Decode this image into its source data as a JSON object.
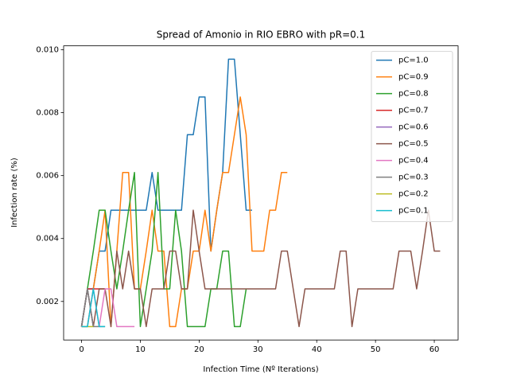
{
  "chart_data": {
    "type": "line",
    "title": "Spread of Amonio in RIO EBRO with pR=0.1",
    "xlabel": "Infection Time (Nº Iterations)",
    "ylabel": "Infection rate (%)",
    "x": [
      0,
      1,
      2,
      3,
      4,
      5,
      6,
      7,
      8,
      9,
      10,
      11,
      12,
      13,
      14,
      15,
      16,
      17,
      18,
      19,
      20,
      21,
      22,
      23,
      24,
      25,
      26,
      27,
      28,
      29,
      30,
      31,
      32,
      33,
      34,
      35,
      36,
      37,
      38,
      39,
      40,
      41,
      42,
      43,
      44,
      45,
      46,
      47,
      48,
      49,
      50,
      51,
      52,
      53,
      54,
      55,
      56,
      57,
      58,
      59,
      60,
      61
    ],
    "xlim": [
      -3.05,
      64.05
    ],
    "xticks": [
      0,
      10,
      20,
      30,
      40,
      50,
      60
    ],
    "ylim": [
      0.000775,
      0.010125
    ],
    "yticks": [
      0.002,
      0.004,
      0.006,
      0.008,
      {
        "value": 0.01,
        "label": "0.010"
      }
    ],
    "legend": "upper right",
    "series": [
      {
        "name": "pC=1.0",
        "color": "#1f77b4",
        "values": [
          0.0012,
          0.0024,
          0.0024,
          0.0036,
          0.0036,
          0.0049,
          0.0049,
          0.0049,
          0.0049,
          0.0049,
          0.0049,
          0.0049,
          0.0061,
          0.0049,
          0.0049,
          0.0049,
          0.0049,
          0.0049,
          0.0073,
          0.0073,
          0.0085,
          0.0085,
          0.0036,
          0.0049,
          0.0061,
          0.0097,
          0.0097,
          0.0073,
          0.0049,
          0.0049,
          null,
          null,
          null,
          null,
          null,
          null,
          null,
          null,
          null,
          null,
          null,
          null,
          null,
          null,
          null,
          null,
          null,
          null,
          null,
          null,
          null,
          null,
          null,
          null,
          null,
          null,
          null,
          null,
          null,
          null,
          null,
          null
        ]
      },
      {
        "name": "pC=0.9",
        "color": "#ff7f0e",
        "values": [
          0.0012,
          0.0012,
          0.0024,
          0.0036,
          0.0049,
          0.0012,
          0.0036,
          0.0061,
          0.0061,
          0.0024,
          0.0024,
          0.0036,
          0.0049,
          0.0036,
          0.0036,
          0.0012,
          0.0012,
          0.0024,
          0.0024,
          0.0036,
          0.0036,
          0.0049,
          0.0036,
          0.0049,
          0.0061,
          0.0061,
          0.0073,
          0.0085,
          0.0073,
          0.0036,
          0.0036,
          0.0036,
          0.0049,
          0.0049,
          0.0061,
          0.0061,
          null,
          null,
          null,
          null,
          null,
          null,
          null,
          null,
          null,
          null,
          null,
          null,
          null,
          null,
          null,
          null,
          null,
          null,
          null,
          null,
          null,
          null,
          null,
          null,
          null,
          null
        ]
      },
      {
        "name": "pC=0.8",
        "color": "#2ca02c",
        "values": [
          0.0012,
          0.0024,
          0.0036,
          0.0049,
          0.0049,
          0.0036,
          0.0024,
          0.0036,
          0.0049,
          0.0061,
          0.0012,
          0.0024,
          0.0036,
          0.0061,
          0.0024,
          0.0024,
          0.0049,
          0.0036,
          0.0012,
          0.0012,
          0.0012,
          0.0012,
          0.0024,
          0.0024,
          0.0036,
          0.0036,
          0.0012,
          0.0012,
          0.0024,
          null,
          null,
          null,
          null,
          null,
          null,
          null,
          null,
          null,
          null,
          null,
          null,
          null,
          null,
          null,
          null,
          null,
          null,
          null,
          null,
          null,
          null,
          null,
          null,
          null,
          null,
          null,
          null,
          null,
          null,
          null,
          null,
          null
        ]
      },
      {
        "name": "pC=0.7",
        "color": "#d62728",
        "values": [
          0.0012,
          0.0024,
          0.0024,
          0.0024,
          0.0024,
          null,
          null,
          null,
          null,
          null,
          null,
          null,
          null,
          null,
          null,
          null,
          null,
          null,
          null,
          null,
          null,
          null,
          null,
          null,
          null,
          null,
          null,
          null,
          null,
          null,
          null,
          null,
          null,
          null,
          null,
          null,
          null,
          null,
          null,
          null,
          null,
          null,
          null,
          null,
          null,
          null,
          null,
          null,
          null,
          null,
          null,
          null,
          null,
          null,
          null,
          null,
          null,
          null,
          null,
          null,
          null,
          null
        ]
      },
      {
        "name": "pC=0.6",
        "color": "#9467bd",
        "values": [
          0.0012,
          0.0024,
          0.0012,
          null,
          null,
          null,
          null,
          null,
          null,
          null,
          null,
          null,
          null,
          null,
          null,
          null,
          null,
          null,
          null,
          null,
          null,
          null,
          null,
          null,
          null,
          null,
          null,
          null,
          null,
          null,
          null,
          null,
          null,
          null,
          null,
          null,
          null,
          null,
          null,
          null,
          null,
          null,
          null,
          null,
          null,
          null,
          null,
          null,
          null,
          null,
          null,
          null,
          null,
          null,
          null,
          null,
          null,
          null,
          null,
          null,
          null,
          null
        ]
      },
      {
        "name": "pC=0.5",
        "color": "#8c564b",
        "values": [
          0.0012,
          0.0024,
          0.0012,
          0.0024,
          0.0024,
          0.0012,
          0.0036,
          0.0024,
          0.0036,
          0.0024,
          0.0024,
          0.0012,
          0.0024,
          0.0024,
          0.0024,
          0.0036,
          0.0036,
          0.0024,
          0.0024,
          0.0049,
          0.0036,
          0.0024,
          0.0024,
          0.0024,
          0.0024,
          0.0024,
          0.0024,
          0.0024,
          0.0024,
          0.0024,
          0.0024,
          0.0024,
          0.0024,
          0.0024,
          0.0036,
          0.0036,
          0.0024,
          0.0012,
          0.0024,
          0.0024,
          0.0024,
          0.0024,
          0.0024,
          0.0024,
          0.0036,
          0.0036,
          0.0012,
          0.0024,
          0.0024,
          0.0024,
          0.0024,
          0.0024,
          0.0024,
          0.0024,
          0.0036,
          0.0036,
          0.0036,
          0.0024,
          0.0036,
          0.0049,
          0.0036,
          0.0036
        ]
      },
      {
        "name": "pC=0.4",
        "color": "#e377c2",
        "values": [
          0.0012,
          0.0012,
          0.0024,
          0.0012,
          0.0024,
          0.0024,
          0.0012,
          0.0012,
          0.0012,
          0.0012,
          null,
          null,
          null,
          null,
          null,
          null,
          null,
          null,
          null,
          null,
          null,
          null,
          null,
          null,
          null,
          null,
          null,
          null,
          null,
          null,
          null,
          null,
          null,
          null,
          null,
          null,
          null,
          null,
          null,
          null,
          null,
          null,
          null,
          null,
          null,
          null,
          null,
          null,
          null,
          null,
          null,
          null,
          null,
          null,
          null,
          null,
          null,
          null,
          null,
          null,
          null,
          null
        ]
      },
      {
        "name": "pC=0.3",
        "color": "#7f7f7f",
        "values": [
          0.0012,
          0.0024,
          0.0012,
          0.0012,
          0.0012,
          null,
          null,
          null,
          null,
          null,
          null,
          null,
          null,
          null,
          null,
          null,
          null,
          null,
          null,
          null,
          null,
          null,
          null,
          null,
          null,
          null,
          null,
          null,
          null,
          null,
          null,
          null,
          null,
          null,
          null,
          null,
          null,
          null,
          null,
          null,
          null,
          null,
          null,
          null,
          null,
          null,
          null,
          null,
          null,
          null,
          null,
          null,
          null,
          null,
          null,
          null,
          null,
          null,
          null,
          null,
          null,
          null
        ]
      },
      {
        "name": "pC=0.2",
        "color": "#bcbd22",
        "values": [
          0.0012,
          0.0012,
          0.0012,
          null,
          null,
          null,
          null,
          null,
          null,
          null,
          null,
          null,
          null,
          null,
          null,
          null,
          null,
          null,
          null,
          null,
          null,
          null,
          null,
          null,
          null,
          null,
          null,
          null,
          null,
          null,
          null,
          null,
          null,
          null,
          null,
          null,
          null,
          null,
          null,
          null,
          null,
          null,
          null,
          null,
          null,
          null,
          null,
          null,
          null,
          null,
          null,
          null,
          null,
          null,
          null,
          null,
          null,
          null,
          null,
          null,
          null,
          null
        ]
      },
      {
        "name": "pC=0.1",
        "color": "#17becf",
        "values": [
          0.0012,
          0.0012,
          0.0024,
          0.0012,
          0.0012,
          null,
          null,
          null,
          null,
          null,
          null,
          null,
          null,
          null,
          null,
          null,
          null,
          null,
          null,
          null,
          null,
          null,
          null,
          null,
          null,
          null,
          null,
          null,
          null,
          null,
          null,
          null,
          null,
          null,
          null,
          null,
          null,
          null,
          null,
          null,
          null,
          null,
          null,
          null,
          null,
          null,
          null,
          null,
          null,
          null,
          null,
          null,
          null,
          null,
          null,
          null,
          null,
          null,
          null,
          null,
          null,
          null
        ]
      }
    ]
  }
}
